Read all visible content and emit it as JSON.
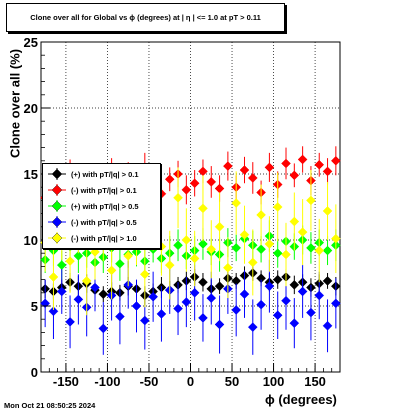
{
  "chart_data": {
    "type": "scatter",
    "title": "Clone  over all for Global vs ϕ (degrees) at |  η | <= 1.0 at pT > 0.11",
    "xlabel": "ϕ (degrees)",
    "ylabel": "Clone  over all (%)",
    "xlim": [
      -180,
      180
    ],
    "ylim": [
      0,
      25
    ],
    "x_ticks": [
      -150,
      -100,
      -50,
      0,
      50,
      100,
      150
    ],
    "y_ticks": [
      0,
      5,
      10,
      15,
      20,
      25
    ],
    "grid": true,
    "legend_position": "left",
    "series": [
      {
        "name": "(+) with pT/|q| > 0.1",
        "color": "#000000",
        "x": [
          -175,
          -165,
          -155,
          -145,
          -135,
          -125,
          -115,
          -105,
          -95,
          -85,
          -75,
          -65,
          -55,
          -45,
          -35,
          -25,
          -15,
          -5,
          5,
          15,
          25,
          35,
          45,
          55,
          65,
          75,
          85,
          95,
          105,
          115,
          125,
          135,
          145,
          155,
          165,
          175
        ],
        "y": [
          6.3,
          6.1,
          6.4,
          6.8,
          6.5,
          6.7,
          6.2,
          5.9,
          6.1,
          6.0,
          6.5,
          6.3,
          5.8,
          6.1,
          6.4,
          6.2,
          6.6,
          6.9,
          7.2,
          6.8,
          6.3,
          6.5,
          7.1,
          6.9,
          7.3,
          7.5,
          7.1,
          6.8,
          7.0,
          7.2,
          6.6,
          6.8,
          6.4,
          6.7,
          6.9,
          6.5
        ],
        "err": [
          0.7,
          0.6,
          0.6,
          0.7,
          0.8,
          0.7,
          0.6,
          0.6,
          0.7,
          0.6,
          0.7,
          0.6,
          0.7,
          0.6,
          0.8,
          0.7,
          0.6,
          0.7,
          0.6,
          0.7,
          0.7,
          0.6,
          0.7,
          0.6,
          0.7,
          0.6,
          0.6,
          0.7,
          0.7,
          0.6,
          0.7,
          0.6,
          0.7,
          0.7,
          0.6,
          0.7
        ]
      },
      {
        "name": "(-) with pT/|q| > 0.1",
        "color": "#ff0000",
        "x": [
          -175,
          -165,
          -155,
          -145,
          -135,
          -125,
          -115,
          -105,
          -95,
          -85,
          -75,
          -65,
          -55,
          -45,
          -35,
          -25,
          -15,
          -5,
          5,
          15,
          25,
          35,
          45,
          55,
          65,
          75,
          85,
          95,
          105,
          115,
          125,
          135,
          145,
          155,
          165,
          175
        ],
        "y": [
          13.2,
          14.5,
          12.8,
          15.1,
          13.6,
          14.8,
          13.0,
          14.2,
          15.3,
          13.7,
          14.9,
          13.3,
          15.4,
          14.1,
          13.5,
          14.6,
          15.0,
          13.8,
          14.3,
          15.2,
          14.4,
          13.9,
          15.6,
          14.0,
          15.3,
          14.7,
          13.6,
          15.5,
          14.2,
          15.8,
          14.9,
          16.1,
          14.5,
          15.7,
          15.2,
          16.0
        ],
        "err": [
          0.8,
          1.2,
          0.9,
          1.0,
          1.1,
          0.9,
          1.0,
          1.2,
          0.9,
          1.1,
          1.0,
          0.9,
          1.2,
          1.0,
          1.1,
          0.9,
          1.0,
          1.1,
          1.0,
          0.9,
          1.2,
          1.0,
          1.1,
          0.9,
          1.0,
          1.2,
          0.9,
          1.1,
          1.0,
          1.2,
          0.9,
          1.0,
          1.1,
          0.9,
          1.0,
          1.1
        ]
      },
      {
        "name": "(+) with pT/|q| > 0.5",
        "color": "#00ff00",
        "x": [
          -175,
          -165,
          -155,
          -145,
          -135,
          -125,
          -115,
          -105,
          -95,
          -85,
          -75,
          -65,
          -55,
          -45,
          -35,
          -25,
          -15,
          -5,
          5,
          15,
          25,
          35,
          45,
          55,
          65,
          75,
          85,
          95,
          105,
          115,
          125,
          135,
          145,
          155,
          165,
          175
        ],
        "y": [
          8.5,
          9.2,
          8.1,
          9.5,
          8.8,
          9.0,
          8.3,
          8.7,
          9.4,
          8.2,
          8.9,
          9.1,
          8.4,
          9.3,
          8.6,
          9.0,
          9.6,
          8.8,
          9.2,
          9.7,
          9.1,
          8.9,
          9.8,
          9.4,
          10.1,
          9.6,
          9.3,
          10.3,
          9.0,
          9.9,
          9.5,
          10.0,
          9.4,
          9.8,
          9.2,
          9.6
        ],
        "err": [
          1.0,
          1.2,
          1.1,
          1.0,
          1.3,
          1.1,
          1.0,
          1.2,
          1.1,
          1.3,
          1.0,
          1.1,
          1.2,
          1.0,
          1.1,
          1.3,
          1.2,
          1.0,
          1.1,
          1.2,
          1.0,
          1.3,
          1.1,
          1.0,
          1.2,
          1.1,
          1.0,
          1.2,
          1.1,
          1.3,
          1.0,
          1.1,
          1.2,
          1.0,
          1.1,
          1.2
        ]
      },
      {
        "name": "(-) with pT/|q| > 0.5",
        "color": "#0000ff",
        "x": [
          -175,
          -165,
          -155,
          -145,
          -135,
          -125,
          -115,
          -105,
          -95,
          -85,
          -75,
          -65,
          -55,
          -45,
          -35,
          -25,
          -15,
          -5,
          5,
          15,
          25,
          35,
          45,
          55,
          65,
          75,
          85,
          95,
          105,
          115,
          125,
          135,
          145,
          155,
          165,
          175
        ],
        "y": [
          5.2,
          4.6,
          6.1,
          3.8,
          5.5,
          4.9,
          6.4,
          3.3,
          5.8,
          4.2,
          6.6,
          5.0,
          3.9,
          5.7,
          4.4,
          6.2,
          4.8,
          5.3,
          6.0,
          4.1,
          5.6,
          3.6,
          6.3,
          4.7,
          5.9,
          3.4,
          5.1,
          6.5,
          4.3,
          5.4,
          3.7,
          6.1,
          4.5,
          5.8,
          3.5,
          5.2
        ],
        "err": [
          1.8,
          2.1,
          1.7,
          2.0,
          1.9,
          2.2,
          1.8,
          2.0,
          1.9,
          2.1,
          1.8,
          2.0,
          2.2,
          1.9,
          2.1,
          1.8,
          2.0,
          1.9,
          2.1,
          1.8,
          2.0,
          2.2,
          1.9,
          2.0,
          1.8,
          2.1,
          1.9,
          2.0,
          1.8,
          2.2,
          1.9,
          2.0,
          2.1,
          1.8,
          2.0,
          1.9
        ]
      },
      {
        "name": "(-) with pT/|q| > 1.0",
        "color": "#ffff00",
        "x": [
          -175,
          -165,
          -155,
          -145,
          -135,
          -125,
          -115,
          -105,
          -95,
          -85,
          -75,
          -65,
          -55,
          -45,
          -35,
          -25,
          -15,
          -5,
          5,
          15,
          25,
          35,
          45,
          55,
          65,
          75,
          85,
          95,
          105,
          115,
          125,
          135,
          145,
          155,
          165,
          175
        ],
        "y": [
          9.8,
          7.2,
          10.5,
          8.4,
          11.3,
          6.9,
          9.1,
          10.8,
          7.7,
          12.0,
          8.8,
          10.2,
          7.4,
          11.6,
          9.5,
          8.1,
          13.2,
          10.0,
          8.6,
          12.4,
          9.3,
          11.0,
          7.9,
          12.8,
          10.4,
          8.3,
          11.9,
          9.7,
          12.5,
          8.9,
          11.4,
          10.6,
          13.0,
          9.2,
          12.2,
          10.1
        ],
        "err": [
          2.2,
          2.5,
          2.0,
          2.4,
          2.3,
          2.6,
          2.1,
          2.4,
          2.2,
          2.7,
          2.3,
          2.1,
          2.5,
          2.4,
          2.2,
          2.6,
          2.3,
          2.4,
          2.1,
          2.5,
          2.2,
          2.6,
          2.3,
          2.4,
          2.2,
          2.5,
          2.3,
          2.1,
          2.6,
          2.4,
          2.2,
          2.5,
          2.3,
          2.4,
          2.2,
          2.6
        ]
      }
    ]
  },
  "timestamp": "Mon Oct 21 08:50:25 2024"
}
